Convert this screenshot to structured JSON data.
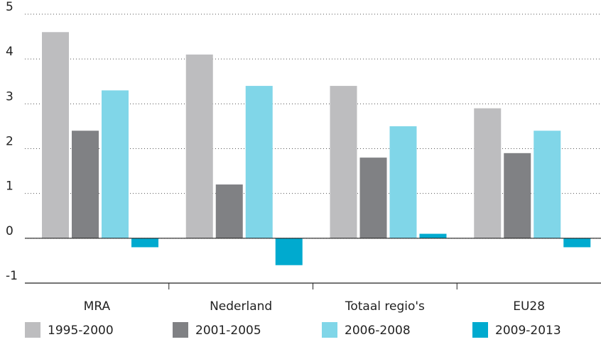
{
  "chart_data": {
    "type": "bar",
    "categories": [
      "MRA",
      "Nederland",
      "Totaal regio's",
      "EU28"
    ],
    "series": [
      {
        "name": "1995-2000",
        "color": "#bdbdbf",
        "values": [
          4.6,
          4.1,
          3.4,
          2.9
        ]
      },
      {
        "name": "2001-2005",
        "color": "#808184",
        "values": [
          2.4,
          1.2,
          1.8,
          1.9
        ]
      },
      {
        "name": "2006-2008",
        "color": "#80d6e8",
        "values": [
          3.3,
          3.4,
          2.5,
          2.4
        ]
      },
      {
        "name": "2009-2013",
        "color": "#00aacf",
        "values": [
          -0.2,
          -0.6,
          0.1,
          -0.2
        ]
      }
    ],
    "ylim": [
      -1,
      5
    ],
    "yticks": [
      -1,
      0,
      1,
      2,
      3,
      4,
      5
    ],
    "grid": true,
    "legend": "bottom"
  }
}
